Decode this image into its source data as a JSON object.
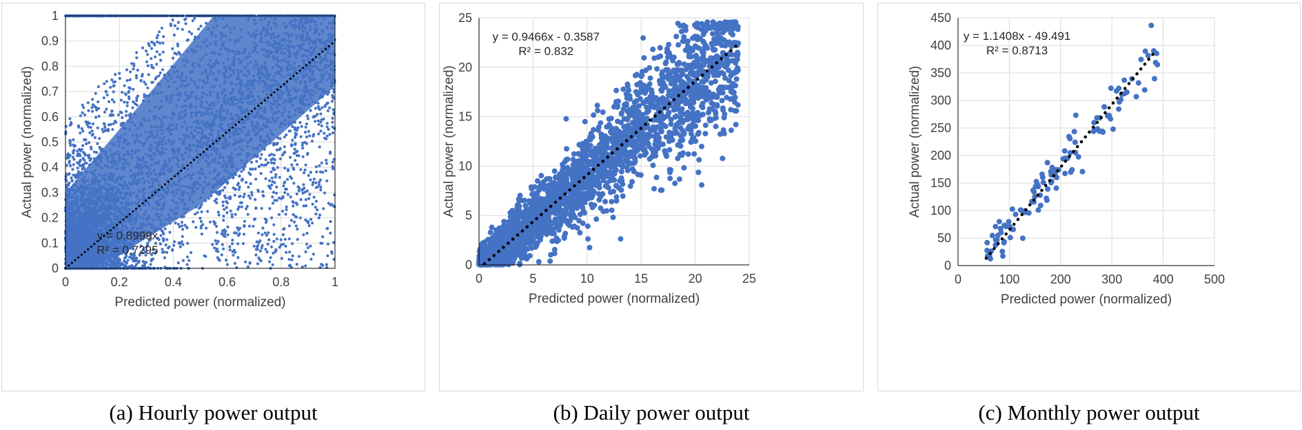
{
  "colors": {
    "point": "#4472c4",
    "trend": "#000000",
    "grid": "#d9d9d9",
    "axis": "#000000",
    "text": "#404040"
  },
  "chart_data": [
    {
      "id": "a",
      "type": "scatter",
      "caption": "(a) Hourly power output",
      "xlabel": "Predicted power (normalized)",
      "ylabel": "Actual power (normalized)",
      "xlim": [
        0,
        1
      ],
      "ylim": [
        0,
        1
      ],
      "xticks": [
        0,
        0.2,
        0.4,
        0.6,
        0.8,
        1
      ],
      "xtick_labels": [
        "0",
        "0.2",
        "0.4",
        "0.6",
        "0.8",
        "1"
      ],
      "yticks": [
        0,
        0.1,
        0.2,
        0.3,
        0.4,
        0.5,
        0.6,
        0.7,
        0.8,
        0.9,
        1
      ],
      "ytick_labels": [
        "0",
        "0.1",
        "0.2",
        "0.3",
        "0.4",
        "0.5",
        "0.6",
        "0.7",
        "0.8",
        "0.9",
        "1"
      ],
      "grid": true,
      "n_points": 6000,
      "point_cloud": "dense scatter of hourly points, heaviest near origin and along the diagonal, saturating at 1",
      "trendline": {
        "slope": 0.8999,
        "intercept": 0,
        "x_range": [
          0,
          1
        ]
      },
      "equation": "y = 0.8999x",
      "r2": "R² = 0.7295"
    },
    {
      "id": "b",
      "type": "scatter",
      "caption": "(b) Daily power output",
      "xlabel": "Predicted power (normalized)",
      "ylabel": "Actual power (normalized)",
      "xlim": [
        0,
        25
      ],
      "ylim": [
        0,
        25
      ],
      "xticks": [
        0,
        5,
        10,
        15,
        20,
        25
      ],
      "xtick_labels": [
        "0",
        "5",
        "10",
        "15",
        "20",
        "25"
      ],
      "yticks": [
        0,
        5,
        10,
        15,
        20,
        25
      ],
      "ytick_labels": [
        "0",
        "5",
        "10",
        "15",
        "20",
        "25"
      ],
      "grid": true,
      "n_points": 2600,
      "point_cloud": "daily points spread around the diagonal from 0 to about 24",
      "trendline": {
        "slope": 0.9466,
        "intercept": -0.3587,
        "x_range": [
          0.5,
          24
        ]
      },
      "equation": "y = 0.9466x - 0.3587",
      "r2": "R² = 0.832"
    },
    {
      "id": "c",
      "type": "scatter",
      "caption": "(c) Monthly power output",
      "xlabel": "Predicted power (normalized)",
      "ylabel": "Actual power (normalized)",
      "xlim": [
        0,
        500
      ],
      "ylim": [
        0,
        450
      ],
      "xticks": [
        0,
        100,
        200,
        300,
        400,
        500
      ],
      "xtick_labels": [
        "0",
        "100",
        "200",
        "300",
        "400",
        "500"
      ],
      "yticks": [
        0,
        50,
        100,
        150,
        200,
        250,
        300,
        350,
        400,
        450
      ],
      "ytick_labels": [
        "0",
        "50",
        "100",
        "150",
        "200",
        "250",
        "300",
        "350",
        "400",
        "450"
      ],
      "grid": true,
      "n_points": 120,
      "point_cloud": "monthly points clustered along the trend from about 50 to 390",
      "trendline": {
        "slope": 1.1408,
        "intercept": -49.491,
        "x_range": [
          55,
          385
        ]
      },
      "equation": "y = 1.1408x - 49.491",
      "r2": "R² = 0.8713"
    }
  ]
}
